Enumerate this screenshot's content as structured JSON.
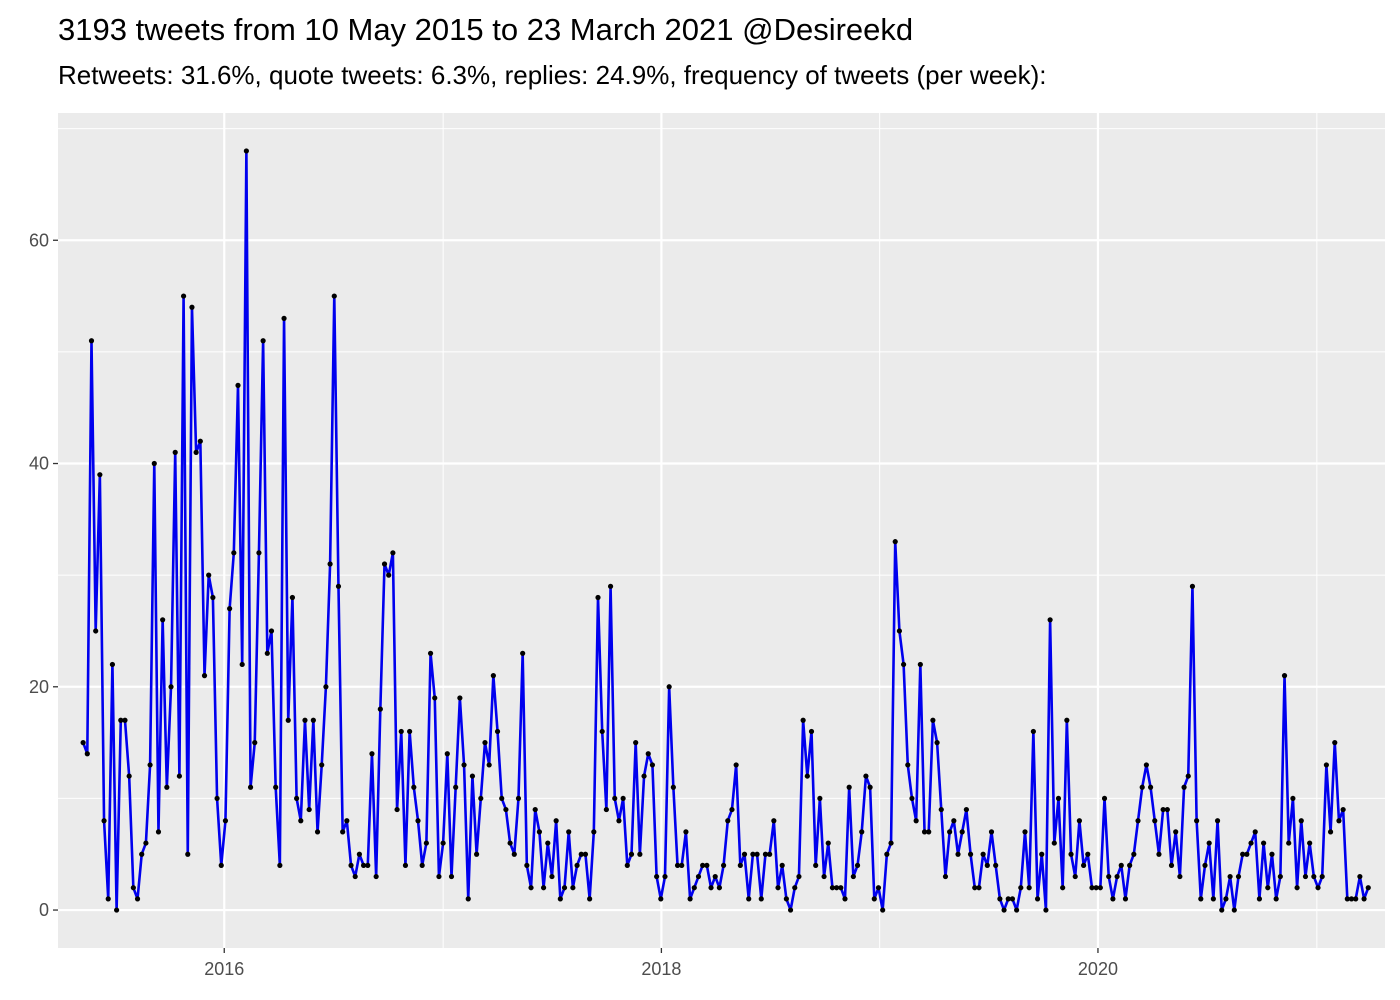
{
  "chart_data": {
    "type": "line",
    "title": "3193 tweets from 10 May 2015 to 23 March 2021 @Desireekd",
    "subtitle": "Retweets: 31.6%, quote tweets: 6.3%, replies: 24.9%, frequency of tweets (per week):",
    "xlabel": "",
    "ylabel": "",
    "x_start": "2015-05-10",
    "x_interval_days": 7,
    "xlim": [
      "2015-03-29",
      "2021-04-25"
    ],
    "ylim": [
      -3.4,
      71.4
    ],
    "x_ticks": [
      "2016",
      "2018",
      "2020"
    ],
    "y_ticks": [
      0,
      20,
      40,
      60
    ],
    "grid": true,
    "line_color": "#0000ee",
    "point_color": "#000000",
    "panel_background": "#ebebeb",
    "series": [
      {
        "values": [
          15,
          14,
          51,
          25,
          39,
          8,
          1,
          22,
          0,
          17,
          17,
          12,
          2,
          1,
          5,
          6,
          13,
          40,
          7,
          26,
          11,
          20,
          41,
          12,
          55,
          5,
          54,
          41,
          42,
          21,
          30,
          28,
          10,
          4,
          8,
          27,
          32,
          47,
          22,
          68,
          11,
          15,
          32,
          51,
          23,
          25,
          11,
          4,
          53,
          17,
          28,
          10,
          8,
          17,
          9,
          17,
          7,
          13,
          20,
          31,
          55,
          29,
          7,
          8,
          4,
          3,
          5,
          4,
          4,
          14,
          3,
          18,
          31,
          30,
          32,
          9,
          16,
          4,
          16,
          11,
          8,
          4,
          6,
          23,
          19,
          3,
          6,
          14,
          3,
          11,
          19,
          13,
          1,
          12,
          5,
          10,
          15,
          13,
          21,
          16,
          10,
          9,
          6,
          5,
          10,
          23,
          4,
          2,
          9,
          7,
          2,
          6,
          3,
          8,
          1,
          2,
          7,
          2,
          4,
          5,
          5,
          1,
          7,
          28,
          16,
          9,
          29,
          10,
          8,
          10,
          4,
          5,
          15,
          5,
          12,
          14,
          13,
          3,
          1,
          3,
          20,
          11,
          4,
          4,
          7,
          1,
          2,
          3,
          4,
          4,
          2,
          3,
          2,
          4,
          8,
          9,
          13,
          4,
          5,
          1,
          5,
          5,
          1,
          5,
          5,
          8,
          2,
          4,
          1,
          0,
          2,
          3,
          17,
          12,
          16,
          4,
          10,
          3,
          6,
          2,
          2,
          2,
          1,
          11,
          3,
          4,
          7,
          12,
          11,
          1,
          2,
          0,
          5,
          6,
          33,
          25,
          22,
          13,
          10,
          8,
          22,
          7,
          7,
          17,
          15,
          9,
          3,
          7,
          8,
          5,
          7,
          9,
          5,
          2,
          2,
          5,
          4,
          7,
          4,
          1,
          0,
          1,
          1,
          0,
          2,
          7,
          2,
          16,
          1,
          5,
          0,
          26,
          6,
          10,
          2,
          17,
          5,
          3,
          8,
          4,
          5,
          2,
          2,
          2,
          10,
          3,
          1,
          3,
          4,
          1,
          4,
          5,
          8,
          11,
          13,
          11,
          8,
          5,
          9,
          9,
          4,
          7,
          3,
          11,
          12,
          29,
          8,
          1,
          4,
          6,
          1,
          8,
          0,
          1,
          3,
          0,
          3,
          5,
          5,
          6,
          7,
          1,
          6,
          2,
          5,
          1,
          3,
          21,
          6,
          10,
          2,
          8,
          3,
          6,
          3,
          2,
          3,
          13,
          7,
          15,
          8,
          9,
          1,
          1,
          1,
          3,
          1,
          2
        ]
      }
    ]
  }
}
